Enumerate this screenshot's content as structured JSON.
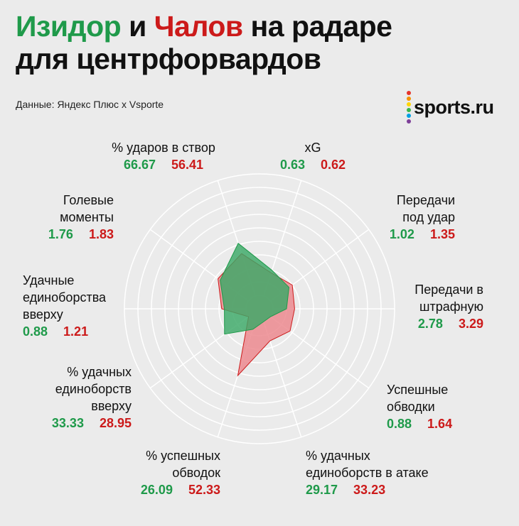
{
  "title": {
    "name_1": "Изидор",
    "connector": "и",
    "name_2": "Чалов",
    "rest_line1": "на радаре",
    "line2": "для центрфорвардов"
  },
  "source": "Данные: Яндекс Плюс x Vsporte",
  "logo": {
    "text": "sports.ru",
    "dot_colors": [
      "#e6332a",
      "#f39200",
      "#ffd500",
      "#3cb54a",
      "#00a0e3",
      "#7d3f98"
    ]
  },
  "colors": {
    "izidor": "#1f9a4a",
    "chalov": "#cc1a1a",
    "izidor_fill": "#3aa866",
    "chalov_fill": "#ec8a8f",
    "grid": "#ffffff"
  },
  "chart_data": {
    "type": "radar",
    "title": "Изидор и Чалов на радаре для центрфорвардов",
    "axes": [
      {
        "name": "xG",
        "izidor": "0.63",
        "chalov": "0.62"
      },
      {
        "name": "Передачи под удар",
        "izidor": "1.02",
        "chalov": "1.35"
      },
      {
        "name": "Передачи в штрафную",
        "izidor": "2.78",
        "chalov": "3.29"
      },
      {
        "name": "Успешные обводки",
        "izidor": "0.88",
        "chalov": "1.64"
      },
      {
        "name": "% удачных единоборств в атаке",
        "izidor": "29.17",
        "chalov": "33.23"
      },
      {
        "name": "% успешных обводок",
        "izidor": "26.09",
        "chalov": "52.33"
      },
      {
        "name": "% удачных единоборств вверху",
        "izidor": "33.33",
        "chalov": "28.95"
      },
      {
        "name": "Удачные единоборства вверху",
        "izidor": "0.88",
        "chalov": "1.21"
      },
      {
        "name": "Голевые моменты",
        "izidor": "1.76",
        "chalov": "1.83"
      },
      {
        "name": "% ударов в створ",
        "izidor": "66.67",
        "chalov": "56.41"
      }
    ],
    "series": [
      {
        "name": "Изидор",
        "normalized": [
          0.3,
          0.27,
          0.2,
          0.1,
          0.1,
          0.16,
          0.32,
          0.26,
          0.36,
          0.51
        ]
      },
      {
        "name": "Чалов",
        "normalized": [
          0.28,
          0.3,
          0.26,
          0.28,
          0.25,
          0.52,
          0.1,
          0.28,
          0.38,
          0.43
        ]
      }
    ],
    "rings": 10
  }
}
